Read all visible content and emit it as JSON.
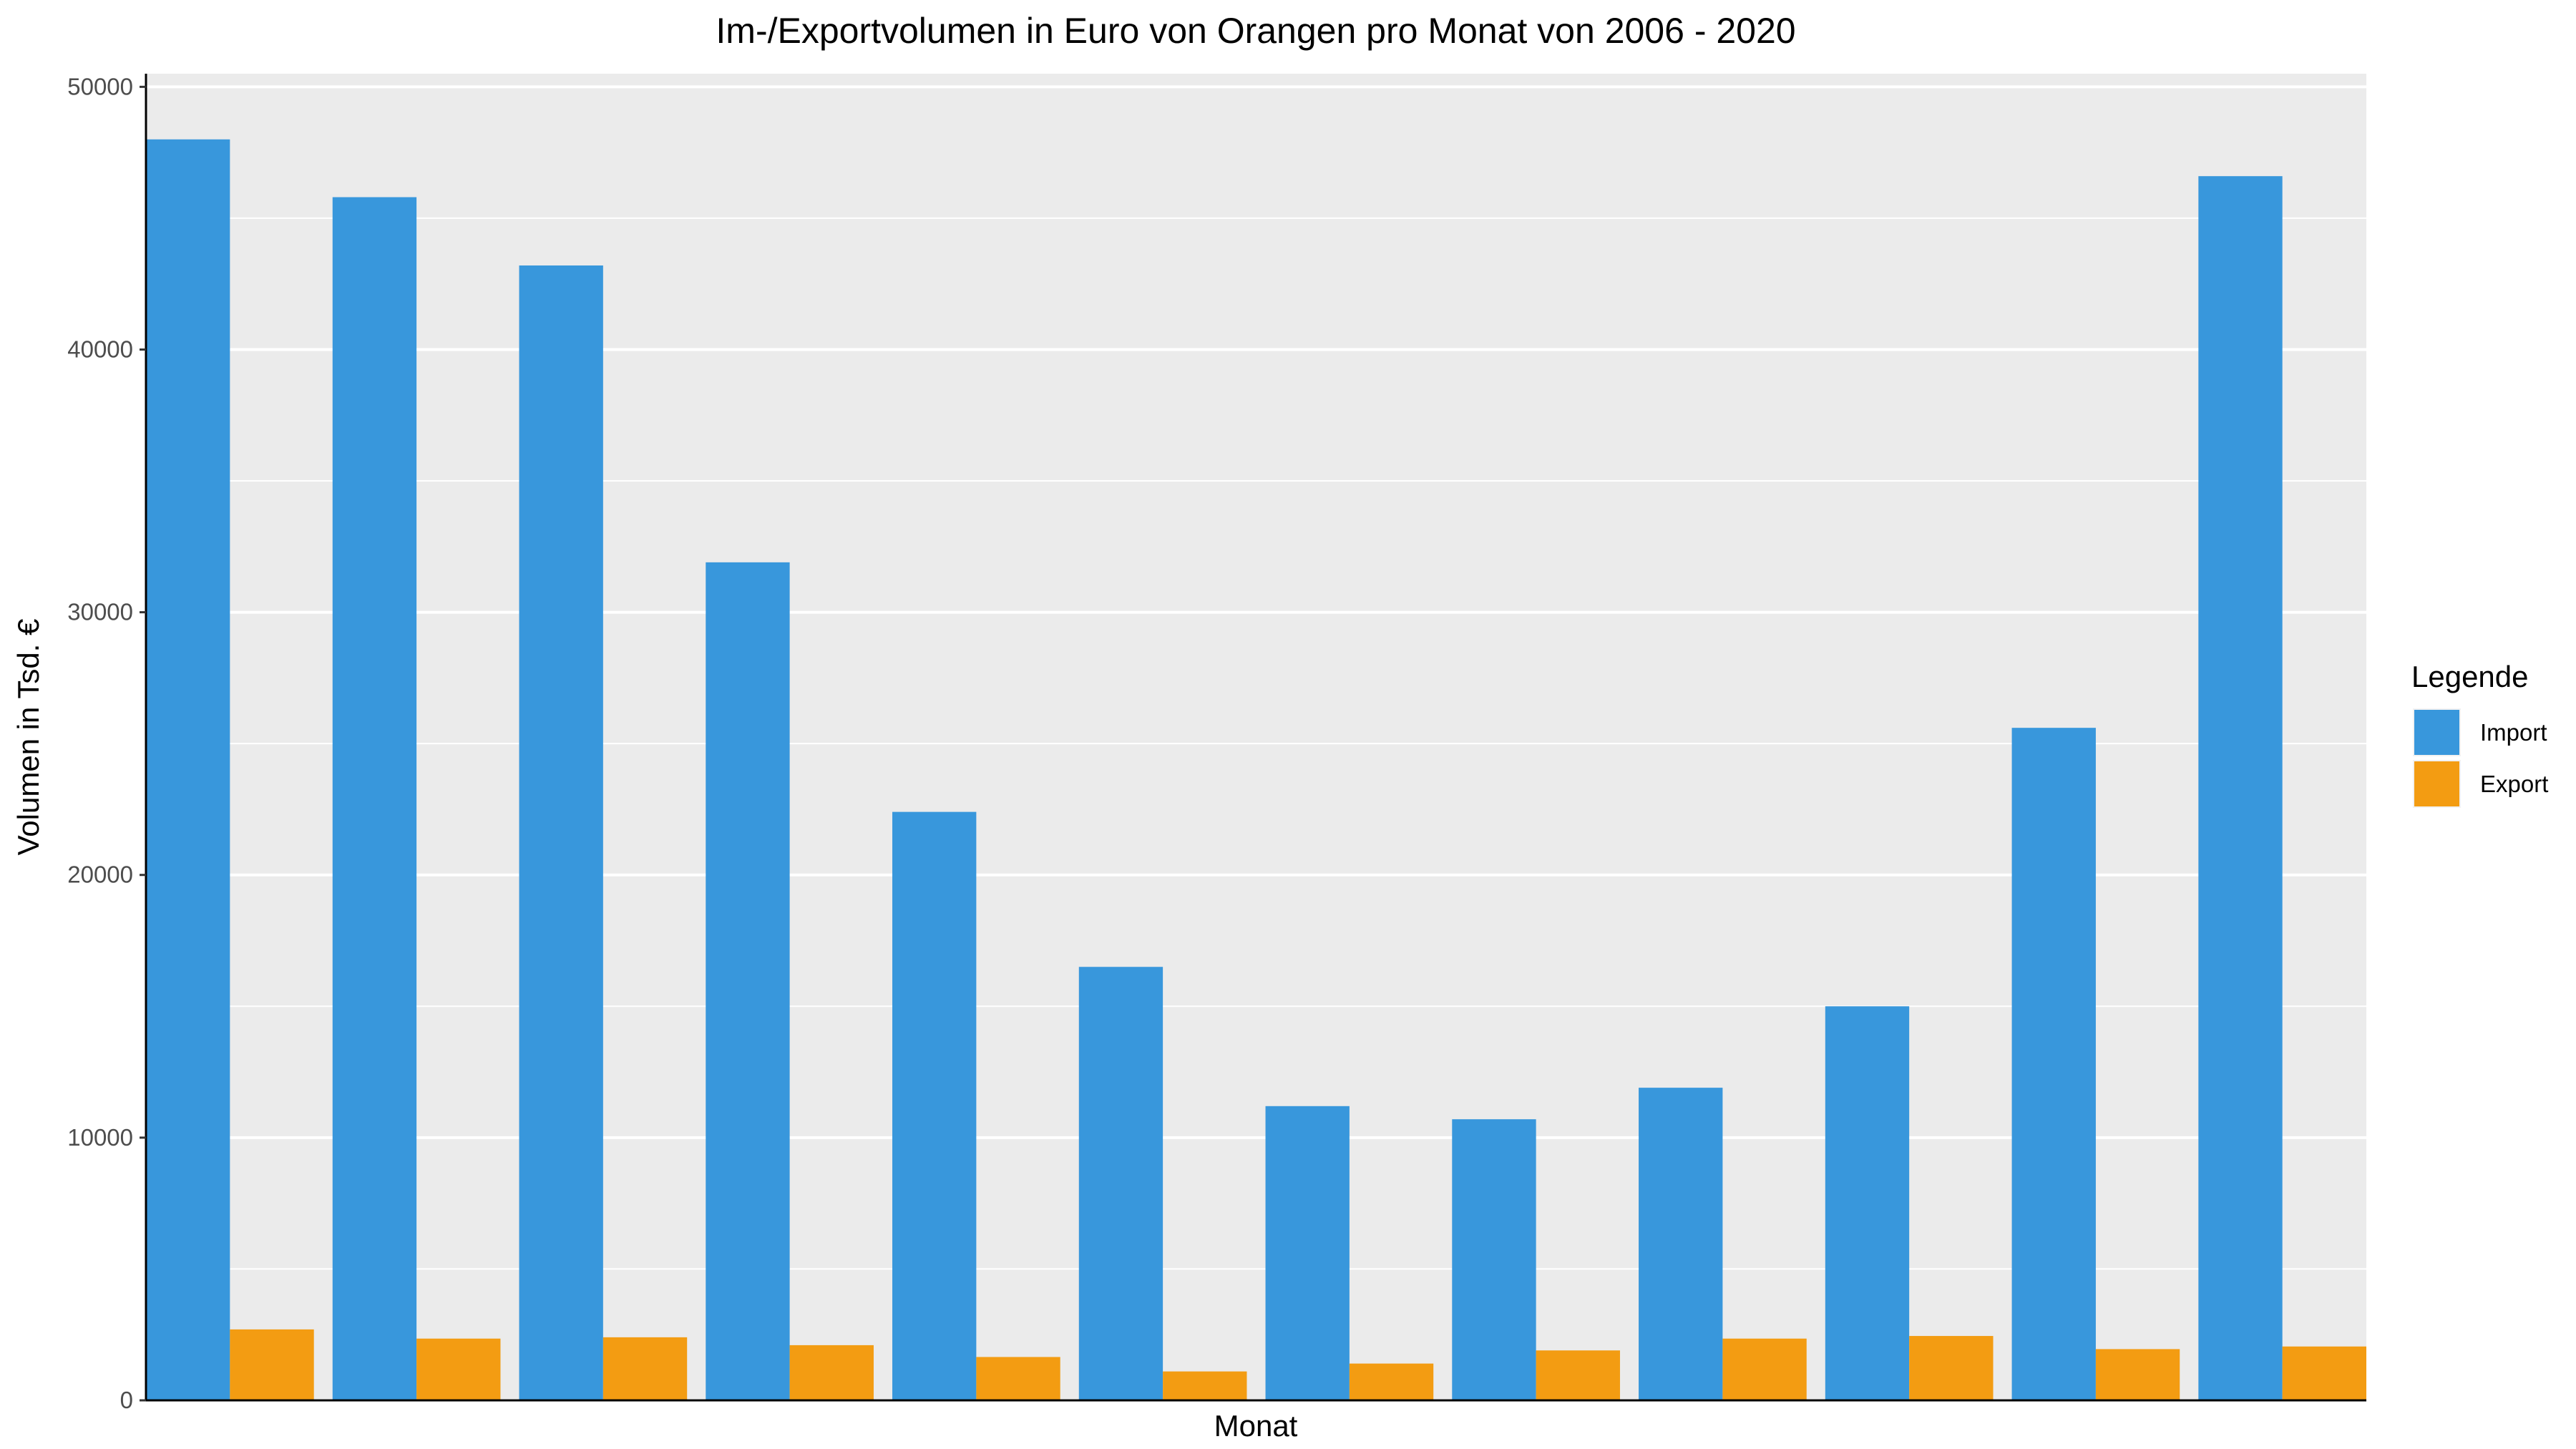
{
  "chart_data": {
    "type": "bar",
    "title": "Im-/Exportvolumen in Euro von Orangen pro Monat von 2006 - 2020",
    "xlabel": "Monat",
    "ylabel": "Volumen in Tsd. €",
    "ylim": [
      0,
      50500
    ],
    "yticks": [
      0,
      10000,
      20000,
      30000,
      40000,
      50000
    ],
    "ytick_labels": [
      "0",
      "10000",
      "20000",
      "30000",
      "40000",
      "50000"
    ],
    "grid": true,
    "legend": {
      "title": "Legende",
      "placement": "right"
    },
    "series": [
      {
        "name": "Import",
        "color": "#3897dc",
        "values": [
          48000,
          45800,
          43200,
          31900,
          22400,
          16500,
          11200,
          10700,
          11900,
          15000,
          25600,
          46600
        ]
      },
      {
        "name": "Export",
        "color": "#f39c12",
        "values": [
          2700,
          2350,
          2400,
          2100,
          1650,
          1100,
          1400,
          1900,
          2350,
          2450,
          1950,
          2050
        ]
      }
    ]
  }
}
